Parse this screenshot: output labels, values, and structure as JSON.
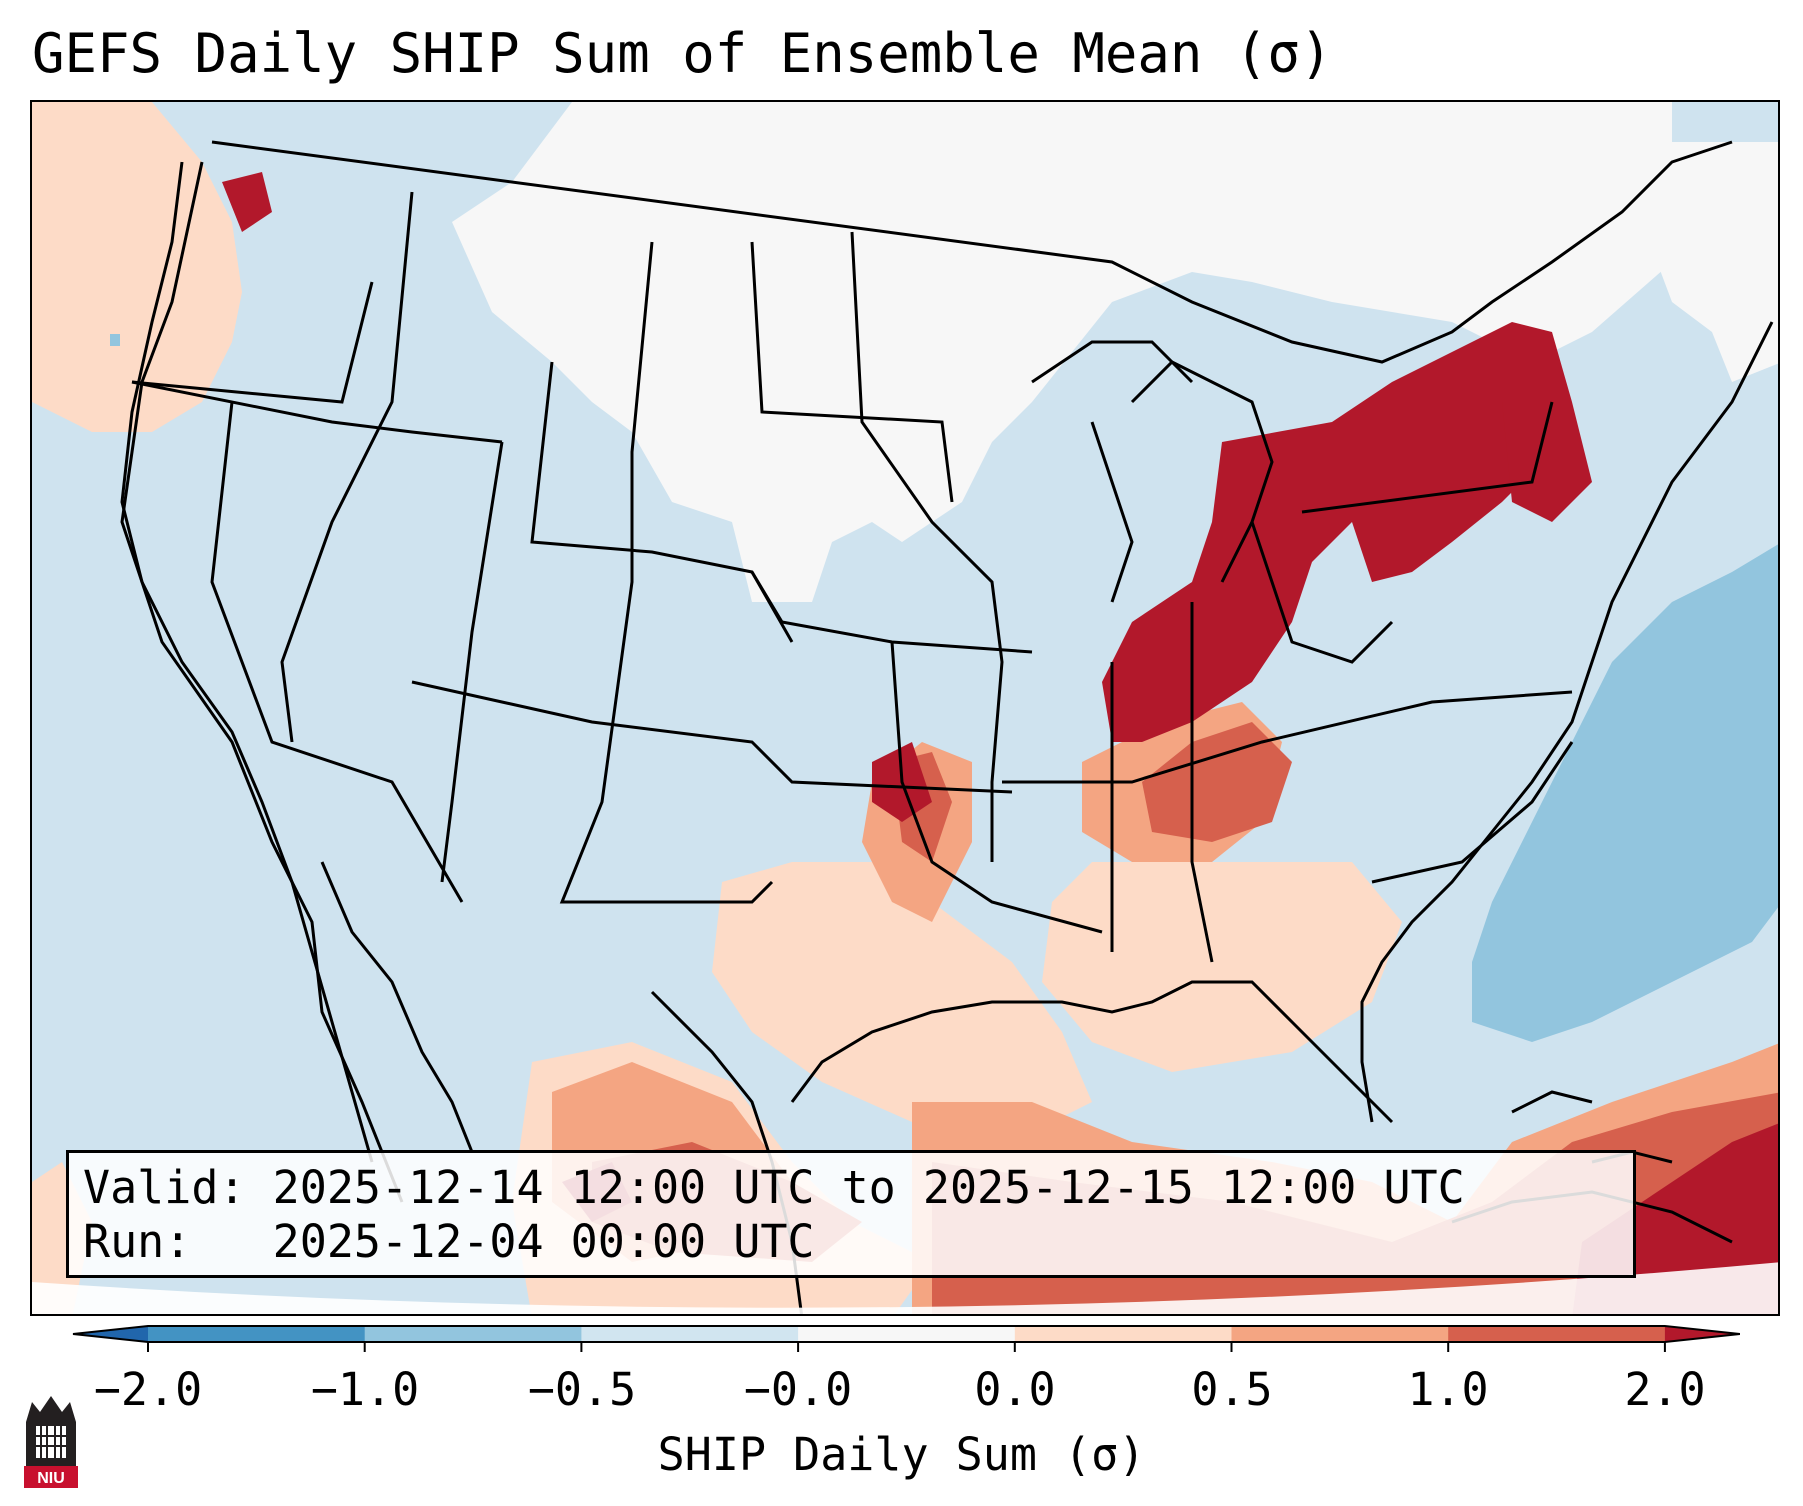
{
  "title": "GEFS Daily SHIP Sum of Ensemble Mean (σ)",
  "info": {
    "valid_label": "Valid:",
    "valid_value": "2025-12-14 12:00 UTC to 2025-12-15 12:00 UTC",
    "run_label": "Run:",
    "run_value": "2025-12-04 00:00 UTC"
  },
  "colorbar": {
    "label": "SHIP Daily Sum (σ)",
    "ticks": [
      "−2.0",
      "−1.0",
      "−0.5",
      "−0.0",
      "0.0",
      "0.5",
      "1.0",
      "2.0"
    ],
    "bins": [
      {
        "range": "< -2.0",
        "color": "#2166ac"
      },
      {
        "range": "-2.0 to -1.0",
        "color": "#4393c3"
      },
      {
        "range": "-1.0 to -0.5",
        "color": "#92c5de"
      },
      {
        "range": "-0.5 to -0.0",
        "color": "#d1e5f0"
      },
      {
        "range": "-0.0 to 0.0",
        "color": "#f7f7f7"
      },
      {
        "range": "0.0 to 0.5",
        "color": "#fddbc7"
      },
      {
        "range": "0.5 to 1.0",
        "color": "#f4a582"
      },
      {
        "range": "1.0 to 2.0",
        "color": "#d6604d"
      },
      {
        "range": "> 2.0",
        "color": "#b2182b"
      }
    ]
  },
  "logo": {
    "text": "NIU",
    "icon": "niu-building-icon"
  },
  "map": {
    "projection": "Lambert conformal, contiguous United States",
    "regions": [
      {
        "name": "Great Lakes to Ohio Valley",
        "category": "> 2.0"
      },
      {
        "name": "Lower Ohio and Mid-Mississippi Valley",
        "category": "1.0 to 2.0"
      },
      {
        "name": "Gulf Coast states",
        "category": "0.0 to 0.5"
      },
      {
        "name": "Northern Mexico and Gulf of Mexico",
        "category": "1.0 to 2.0"
      },
      {
        "name": "Western Caribbean",
        "category": "> 2.0"
      },
      {
        "name": "Northern Plains and Upper Midwest",
        "category": "-0.0 to 0.0"
      },
      {
        "name": "Western Atlantic",
        "category": "-1.0 to -0.5"
      },
      {
        "name": "Pacific Northwest coast",
        "category": "0.0 to 0.5"
      }
    ]
  }
}
